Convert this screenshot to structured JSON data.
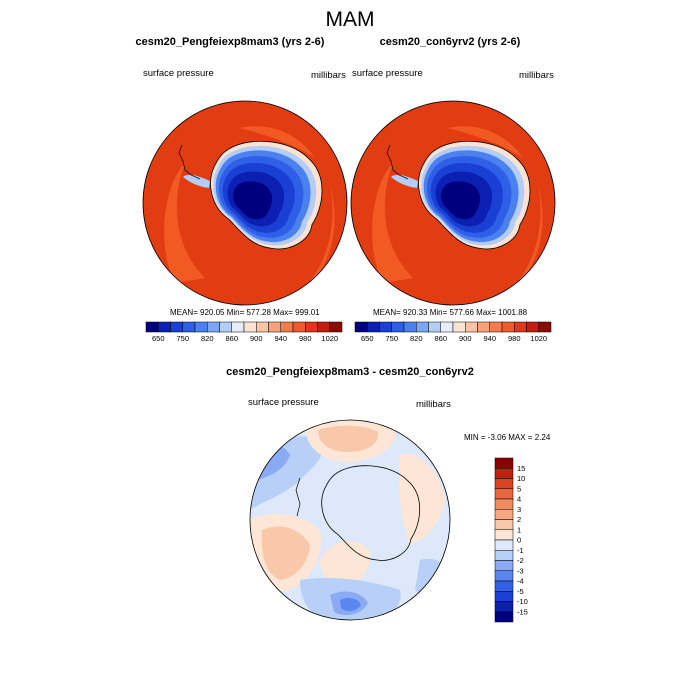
{
  "title": "MAM",
  "colors": {
    "abs_levels": [
      "#00007f",
      "#0b1fb3",
      "#1a3fd4",
      "#2e5fe6",
      "#4a80f0",
      "#7aa6f5",
      "#b4cdf7",
      "#e7eef9",
      "#fbe3d4",
      "#f9c4a3",
      "#f7a278",
      "#f47b4e",
      "#ee5a2c",
      "#e0361b",
      "#c01e10",
      "#8b0a05"
    ],
    "diff_levels": [
      "#000080",
      "#0a1fb0",
      "#1c3fd6",
      "#3360e8",
      "#5a86f0",
      "#8aabf4",
      "#b8d0f7",
      "#dde9fb",
      "#fde6d6",
      "#f9c8ab",
      "#f5a882",
      "#f08a5f",
      "#e86640",
      "#d94524",
      "#b82410",
      "#8b0000"
    ],
    "ocean": "#e23c13",
    "ocean_outer": "#f25a24"
  },
  "panels": [
    {
      "title": "cesm20_Pengfeiexp8mam3 (yrs 2-6)",
      "left_label": "surface pressure",
      "right_label": "millibars",
      "stats": "MEAN= 920.05  Min= 577.28  Max= 999.01"
    },
    {
      "title": "cesm20_con6yrv2 (yrs 2-6)",
      "left_label": "surface pressure",
      "right_label": "millibars",
      "stats": "MEAN= 920.33  Min= 577.66  Max= 1001.88"
    }
  ],
  "abs_ticks": [
    "650",
    "750",
    "820",
    "860",
    "900",
    "940",
    "980",
    "1020"
  ],
  "diff_panel": {
    "title": "cesm20_Pengfeiexp8mam3 - cesm20_con6yrv2",
    "left_label": "surface pressure",
    "right_label": "millibars",
    "minmax": "MIN =  -3.06 MAX =   2.24",
    "ticks": [
      "15",
      "10",
      "5",
      "4",
      "3",
      "2",
      "1",
      "0",
      "-1",
      "-2",
      "-3",
      "-4",
      "-5",
      "-10",
      "-15"
    ]
  },
  "chart_data": [
    {
      "type": "heatmap",
      "title": "cesm20_Pengfeiexp8mam3 (yrs 2-6)",
      "variable": "surface pressure",
      "units": "millibars",
      "mean": 920.05,
      "min": 577.28,
      "max": 999.01,
      "colorbar_ticks": [
        650,
        750,
        820,
        860,
        900,
        940,
        980,
        1020
      ]
    },
    {
      "type": "heatmap",
      "title": "cesm20_con6yrv2 (yrs 2-6)",
      "variable": "surface pressure",
      "units": "millibars",
      "mean": 920.33,
      "min": 577.66,
      "max": 1001.88,
      "colorbar_ticks": [
        650,
        750,
        820,
        860,
        900,
        940,
        980,
        1020
      ]
    },
    {
      "type": "heatmap",
      "title": "cesm20_Pengfeiexp8mam3 - cesm20_con6yrv2",
      "variable": "surface pressure",
      "units": "millibars",
      "min": -3.06,
      "max": 2.24,
      "colorbar_ticks": [
        15,
        10,
        5,
        4,
        3,
        2,
        1,
        0,
        -1,
        -2,
        -3,
        -4,
        -5,
        -10,
        -15
      ]
    }
  ]
}
